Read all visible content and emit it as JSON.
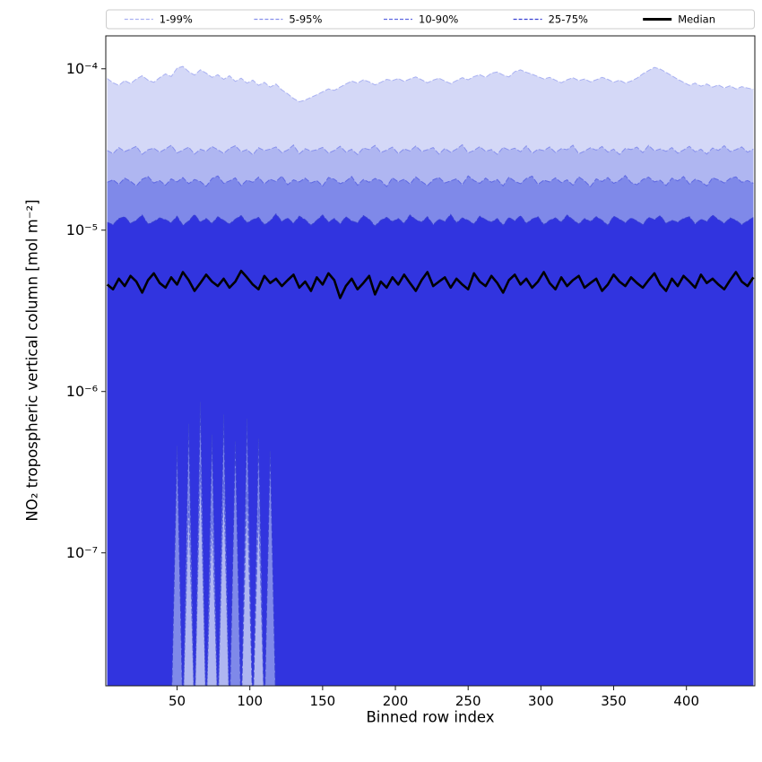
{
  "chart_data": {
    "type": "area",
    "title": "",
    "xlabel": "Binned row index",
    "ylabel": "NO₂ tropospheric vertical column [mol m⁻²]",
    "y_scale": "log",
    "x_range": [
      1,
      447
    ],
    "y_range": [
      1.5e-08,
      0.00016
    ],
    "x_ticks": [
      50,
      100,
      150,
      200,
      250,
      300,
      350,
      400
    ],
    "y_ticks": [
      {
        "v": 0.0001,
        "label": "10⁻⁴"
      },
      {
        "v": 1e-05,
        "label": "10⁻⁵"
      },
      {
        "v": 1e-06,
        "label": "10⁻⁶"
      },
      {
        "v": 1e-07,
        "label": "10⁻⁷"
      }
    ],
    "unit_scale": 1e-07,
    "x": [
      2,
      6,
      10,
      14,
      18,
      22,
      26,
      30,
      34,
      38,
      42,
      46,
      50,
      54,
      58,
      62,
      66,
      70,
      74,
      78,
      82,
      86,
      90,
      94,
      98,
      102,
      106,
      110,
      114,
      118,
      122,
      126,
      130,
      134,
      138,
      142,
      146,
      150,
      154,
      158,
      162,
      166,
      170,
      174,
      178,
      182,
      186,
      190,
      194,
      198,
      202,
      206,
      210,
      214,
      218,
      222,
      226,
      230,
      234,
      238,
      242,
      246,
      250,
      254,
      258,
      262,
      266,
      270,
      274,
      278,
      282,
      286,
      290,
      294,
      298,
      302,
      306,
      310,
      314,
      318,
      322,
      326,
      330,
      334,
      338,
      342,
      346,
      350,
      354,
      358,
      362,
      366,
      370,
      374,
      378,
      382,
      386,
      390,
      394,
      398,
      402,
      406,
      410,
      414,
      418,
      422,
      426,
      430,
      434,
      438,
      442,
      446
    ],
    "series": {
      "p99": [
        870,
        820,
        790,
        845,
        810,
        865,
        905,
        850,
        825,
        880,
        930,
        895,
        1010,
        1035,
        960,
        915,
        985,
        940,
        885,
        920,
        860,
        905,
        835,
        875,
        815,
        850,
        790,
        825,
        770,
        805,
        740,
        700,
        655,
        625,
        640,
        665,
        690,
        720,
        750,
        735,
        770,
        805,
        840,
        815,
        855,
        830,
        795,
        825,
        860,
        845,
        870,
        835,
        865,
        890,
        855,
        820,
        850,
        875,
        840,
        810,
        845,
        880,
        855,
        895,
        920,
        885,
        940,
        955,
        915,
        890,
        960,
        985,
        950,
        925,
        895,
        865,
        885,
        850,
        820,
        855,
        880,
        845,
        865,
        830,
        855,
        885,
        860,
        825,
        850,
        815,
        840,
        875,
        930,
        975,
        1020,
        995,
        950,
        905,
        860,
        825,
        790,
        815,
        780,
        805,
        770,
        795,
        760,
        785,
        750,
        775,
        760,
        745
      ],
      "p95": [
        312,
        298,
        325,
        307,
        318,
        331,
        295,
        315,
        322,
        304,
        319,
        336,
        301,
        313,
        327,
        296,
        317,
        308,
        330,
        315,
        299,
        321,
        334,
        306,
        316,
        293,
        324,
        311,
        318,
        328,
        302,
        314,
        337,
        297,
        320,
        309,
        315,
        326,
        300,
        312,
        331,
        305,
        317,
        294,
        323,
        316,
        335,
        303,
        313,
        327,
        298,
        319,
        310,
        332,
        307,
        315,
        325,
        296,
        321,
        304,
        318,
        338,
        301,
        312,
        329,
        308,
        316,
        295,
        326,
        314,
        322,
        306,
        333,
        299,
        317,
        311,
        328,
        303,
        320,
        315,
        336,
        297,
        309,
        324,
        313,
        330,
        305,
        318,
        294,
        321,
        316,
        327,
        302,
        335,
        310,
        319,
        308,
        325,
        300,
        314,
        331,
        306,
        317,
        296,
        323,
        312,
        334,
        307,
        315,
        328,
        304,
        318
      ],
      "p90": [
        198,
        205,
        192,
        210,
        201,
        188,
        207,
        215,
        196,
        203,
        190,
        208,
        199,
        212,
        194,
        206,
        200,
        187,
        209,
        217,
        195,
        202,
        211,
        189,
        204,
        198,
        213,
        193,
        207,
        200,
        216,
        191,
        205,
        199,
        210,
        196,
        203,
        188,
        212,
        207,
        194,
        201,
        215,
        190,
        206,
        198,
        209,
        203,
        186,
        211,
        199,
        207,
        193,
        214,
        200,
        189,
        205,
        212,
        196,
        202,
        208,
        191,
        217,
        203,
        195,
        210,
        198,
        206,
        188,
        213,
        201,
        194,
        209,
        216,
        192,
        204,
        199,
        211,
        197,
        205,
        190,
        214,
        202,
        186,
        208,
        200,
        212,
        195,
        203,
        218,
        197,
        191,
        206,
        213,
        199,
        204,
        189,
        210,
        202,
        215,
        193,
        207,
        200,
        188,
        211,
        205,
        196,
        209,
        214,
        198,
        203,
        195
      ],
      "p75": [
        112,
        108,
        118,
        121,
        110,
        115,
        124,
        109,
        113,
        119,
        116,
        111,
        122,
        107,
        114,
        125,
        112,
        118,
        110,
        121,
        115,
        109,
        117,
        123,
        111,
        116,
        120,
        108,
        114,
        126,
        113,
        119,
        110,
        122,
        116,
        107,
        115,
        124,
        112,
        118,
        109,
        121,
        114,
        111,
        123,
        117,
        106,
        115,
        120,
        113,
        118,
        110,
        124,
        116,
        112,
        121,
        108,
        117,
        113,
        125,
        111,
        119,
        115,
        109,
        122,
        116,
        112,
        118,
        107,
        120,
        114,
        123,
        110,
        117,
        121,
        108,
        115,
        119,
        112,
        124,
        116,
        109,
        118,
        113,
        121,
        115,
        107,
        122,
        117,
        111,
        119,
        114,
        108,
        120,
        116,
        123,
        110,
        115,
        112,
        118,
        121,
        109,
        117,
        113,
        124,
        116,
        110,
        119,
        115,
        108,
        114,
        120
      ],
      "median": [
        46,
        43,
        50,
        45,
        52,
        48,
        41,
        49,
        54,
        47,
        44,
        51,
        46,
        55,
        49,
        42,
        47,
        53,
        48,
        45,
        50,
        44,
        48,
        56,
        51,
        46,
        43,
        52,
        47,
        50,
        45,
        49,
        53,
        44,
        48,
        42,
        51,
        46,
        54,
        49,
        38,
        45,
        50,
        43,
        47,
        52,
        40,
        48,
        44,
        51,
        46,
        53,
        47,
        42,
        49,
        55,
        45,
        48,
        51,
        44,
        50,
        46,
        43,
        54,
        48,
        45,
        52,
        47,
        41,
        49,
        53,
        46,
        50,
        44,
        48,
        55,
        47,
        43,
        51,
        45,
        49,
        52,
        44,
        47,
        50,
        42,
        46,
        53,
        48,
        45,
        51,
        47,
        44,
        49,
        54,
        46,
        42,
        50,
        45,
        52,
        48,
        44,
        53,
        47,
        50,
        46,
        43,
        49,
        55,
        48,
        45,
        51
      ],
      "p25_lower": [
        0.1,
        0.1,
        0.1,
        0.1,
        0.1,
        0.1,
        0.1,
        0.1,
        0.1,
        0.1,
        0.1,
        0.1,
        4.6,
        0.1,
        6.3,
        0.1,
        8.6,
        0.1,
        5.4,
        0.1,
        7.2,
        0.1,
        4.9,
        0.1,
        6.8,
        0.1,
        5.1,
        0.1,
        4.3,
        0.1,
        0.1,
        0.1,
        0.1,
        0.1,
        0.1,
        0.1,
        0.1,
        0.1,
        0.1,
        0.1,
        0.1,
        0.1,
        0.1,
        0.1,
        0.1,
        0.1,
        0.1,
        0.1,
        0.1,
        0.1,
        0.1,
        0.1,
        0.1,
        0.1,
        0.1,
        0.1,
        0.1,
        0.1,
        0.1,
        0.1,
        0.1,
        0.1,
        0.1,
        0.1,
        0.1,
        0.1,
        0.1,
        0.1,
        0.1,
        0.1,
        0.1,
        0.1,
        0.1,
        0.1,
        0.1,
        0.1,
        0.1,
        0.1,
        0.1,
        0.1,
        0.1,
        0.1,
        0.1,
        0.1,
        0.1,
        0.1,
        0.1,
        0.1,
        0.1,
        0.1,
        0.1,
        0.1,
        0.1,
        0.1,
        0.1,
        0.1,
        0.1,
        0.1,
        0.1,
        0.1,
        0.1,
        0.1,
        0.1,
        0.1,
        0.1,
        0.1,
        0.1,
        0.1,
        0.1,
        0.1,
        0.1,
        0.1
      ],
      "p10_lower": [
        0.1,
        0.1,
        0.1,
        0.1,
        0.1,
        0.1,
        0.1,
        0.1,
        0.1,
        0.1,
        0.1,
        0.1,
        0.1,
        0.1,
        2.1,
        0.1,
        3.5,
        0.1,
        1.8,
        0.1,
        2.8,
        0.1,
        0.1,
        0.1,
        2.4,
        0.1,
        1.9,
        0.1,
        0.1,
        0.1,
        0.1,
        0.1,
        0.1,
        0.1,
        0.1,
        0.1,
        0.1,
        0.1,
        0.1,
        0.1,
        0.1,
        0.1,
        0.1,
        0.1,
        0.1,
        0.1,
        0.1,
        0.1,
        0.1,
        0.1,
        0.1,
        0.1,
        0.1,
        0.1,
        0.1,
        0.1,
        0.1,
        0.1,
        0.1,
        0.1,
        0.1,
        0.1,
        0.1,
        0.1,
        0.1,
        0.1,
        0.1,
        0.1,
        0.1,
        0.1,
        0.1,
        0.1,
        0.1,
        0.1,
        0.1,
        0.1,
        0.1,
        0.1,
        0.1,
        0.1,
        0.1,
        0.1,
        0.1,
        0.1,
        0.1,
        0.1,
        0.1,
        0.1,
        0.1,
        0.1,
        0.1,
        0.1,
        0.1,
        0.1,
        0.1,
        0.1,
        0.1,
        0.1,
        0.1,
        0.1,
        0.1,
        0.1,
        0.1,
        0.1,
        0.1,
        0.1,
        0.1,
        0.1,
        0.1,
        0.1,
        0.1,
        0.1
      ],
      "p5_lower": 0.1,
      "p1_lower": 0.1
    },
    "bands": [
      {
        "name": "band-1-99",
        "label": "1-99%",
        "upper": "p99",
        "lower": "p1_lower",
        "fill": "#d4d8f7",
        "edge": "#a9b1f2"
      },
      {
        "name": "band-5-95",
        "label": "5-95%",
        "upper": "p95",
        "lower": "p5_lower",
        "fill": "#afb6f1",
        "edge": "#8790ec"
      },
      {
        "name": "band-10-90",
        "label": "10-90%",
        "upper": "p90",
        "lower": "p10_lower",
        "fill": "#7f89e9",
        "edge": "#5f69e2"
      },
      {
        "name": "band-25-75",
        "label": "25-75%",
        "upper": "p75",
        "lower": "p25_lower",
        "fill": "#3134df",
        "edge": "#3a41d2"
      }
    ],
    "median_style": {
      "color": "#000000",
      "width": 2.6
    },
    "legend": {
      "items": [
        {
          "label": "1-99%",
          "color": "#a9b1f2",
          "style": "dashed"
        },
        {
          "label": "5-95%",
          "color": "#8790ec",
          "style": "dashed"
        },
        {
          "label": "10-90%",
          "color": "#5f69e2",
          "style": "dashed"
        },
        {
          "label": "25-75%",
          "color": "#3a41d2",
          "style": "dashed"
        },
        {
          "label": "Median",
          "color": "#000000",
          "style": "solid-thick"
        }
      ],
      "border_color": "#cccccc",
      "background": "#ffffff"
    },
    "frame_color": "#1a1a1a",
    "background": "#ffffff"
  }
}
